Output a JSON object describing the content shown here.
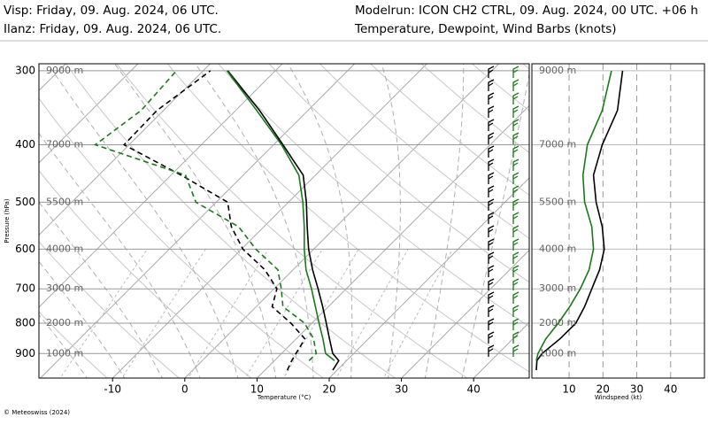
{
  "header": {
    "stations": [
      {
        "text": "Visp: Friday, 09. Aug. 2024, 06 UTC.",
        "color": "#000000"
      },
      {
        "text": "Ilanz: Friday, 09. Aug. 2024, 06 UTC.",
        "color": "#1a7a1a"
      }
    ],
    "modelrun": "Modelrun: ICON CH2 CTRL, 09. Aug. 2024, 00 UTC. +06 h",
    "subtitle": "Temperature, Dewpoint, Wind Barbs (knots)"
  },
  "footer": "© Meteoswiss (2024)",
  "chart_data": [
    {
      "type": "skewt",
      "xlabel": "Temperature (°C)",
      "ylabel": "Pressure (hPa)",
      "y": [
        960,
        925,
        900,
        850,
        800,
        750,
        700,
        650,
        600,
        550,
        500,
        450,
        400,
        350,
        300
      ],
      "series": [
        {
          "color": "#000000",
          "style": "solid",
          "values": [
            19.4,
            18.9,
            17.1,
            14.6,
            12.0,
            9.2,
            6.1,
            2.7,
            -0.7,
            -4.0,
            -7.5,
            -11.7,
            -18.7,
            -26.7,
            -36.6
          ]
        },
        {
          "color": "#000000",
          "style": "dashed",
          "values": [
            13.1,
            12.4,
            12.0,
            11.2,
            7.1,
            2.2,
            0.4,
            -3.9,
            -9.8,
            -14.5,
            -18.4,
            -28.6,
            -40.7,
            -40.9,
            -39.0
          ]
        },
        {
          "color": "#1a7a1a",
          "style": "solid",
          "values": [
            null,
            18.3,
            16.1,
            13.7,
            11.0,
            8.2,
            5.2,
            1.8,
            -1.3,
            -4.4,
            -8.0,
            -12.3,
            -18.9,
            -27.1,
            -36.7
          ]
        },
        {
          "color": "#1a7a1a",
          "style": "dashed",
          "values": [
            null,
            14.8,
            14.8,
            12.4,
            9.0,
            3.7,
            1.0,
            -2.1,
            -8.0,
            -13.5,
            -22.8,
            -28.0,
            -44.7,
            -43.1,
            -43.7
          ]
        }
      ],
      "xlim": [
        -20.2,
        47.7
      ],
      "xticks": [
        -10,
        0,
        10,
        20,
        30,
        40
      ],
      "ylim": [
        990,
        292
      ],
      "log_y": true,
      "yticks": [
        300,
        400,
        500,
        600,
        700,
        800,
        900
      ],
      "height_labels": [
        "9000 m",
        "7000 m",
        "5500 m",
        "4000 m",
        "3000 m",
        "2000 m",
        "1000 m"
      ],
      "grid": true
    },
    {
      "type": "line",
      "xlabel": "Windspeed (kt)",
      "y": [
        960,
        925,
        900,
        850,
        800,
        750,
        700,
        650,
        600,
        550,
        500,
        450,
        400,
        350,
        300
      ],
      "series": [
        {
          "color": "#000000",
          "values": [
            0.3,
            0.5,
            2,
            7.3,
            12,
            14.6,
            16.7,
            19,
            20.4,
            19.8,
            18,
            17.2,
            19.8,
            24.3,
            25.8
          ]
        },
        {
          "color": "#1a7a1a",
          "values": [
            null,
            0.3,
            0.8,
            3.1,
            6.8,
            10.2,
            13.3,
            15.9,
            17.2,
            16.7,
            14.6,
            14.1,
            15.4,
            19.8,
            22.5
          ]
        }
      ],
      "xlim": [
        -1,
        50
      ],
      "xticks": [
        10,
        20,
        30,
        40
      ],
      "ylim": [
        990,
        292
      ],
      "log_y": true,
      "yticks": [
        300,
        400,
        500,
        600,
        700,
        800,
        900
      ],
      "height_labels": [
        "9000 m",
        "7000 m",
        "5500 m",
        "4000 m",
        "3000 m",
        "2000 m",
        "1000 m"
      ],
      "grid": true
    }
  ]
}
